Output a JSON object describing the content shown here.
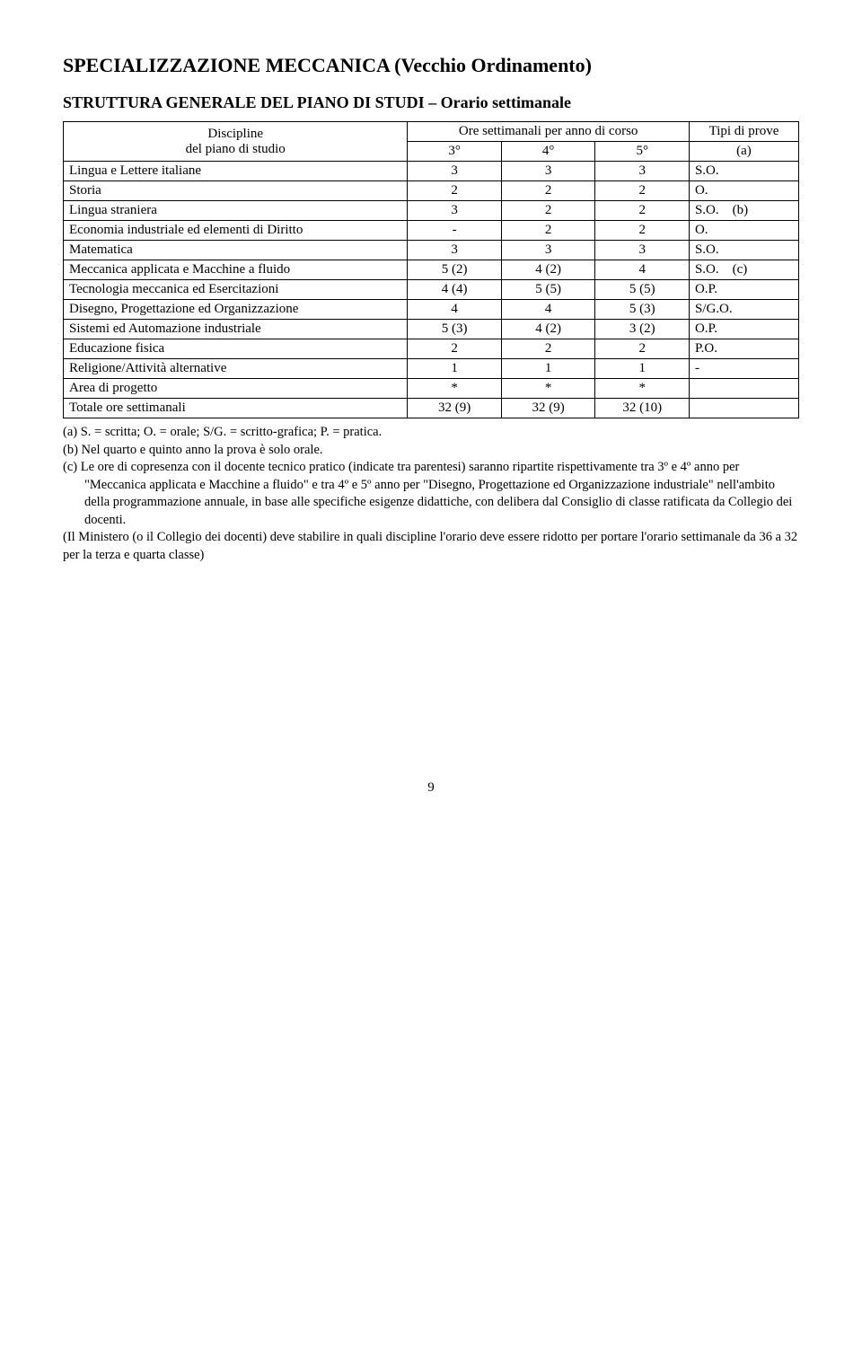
{
  "title": "SPECIALIZZAZIONE MECCANICA (Vecchio Ordinamento)",
  "subtitle": "STRUTTURA GENERALE DEL PIANO DI STUDI – Orario settimanale",
  "header": {
    "discipline": "Discipline",
    "piano": "del piano di studio",
    "ore": "Ore settimanali per anno di corso",
    "c3": "3°",
    "c4": "4°",
    "c5": "5°",
    "tipi": "Tipi di prove",
    "a": "(a)"
  },
  "rows": [
    {
      "label": "Lingua e Lettere italiane",
      "v3": "3",
      "v4": "3",
      "v5": "3",
      "t": "S.O."
    },
    {
      "label": "Storia",
      "v3": "2",
      "v4": "2",
      "v5": "2",
      "t": "O."
    },
    {
      "label": "Lingua straniera",
      "v3": "3",
      "v4": "2",
      "v5": "2",
      "t": "S.O.    (b)"
    },
    {
      "label": "Economia industriale ed elementi di Diritto",
      "v3": "-",
      "v4": "2",
      "v5": "2",
      "t": "O."
    },
    {
      "label": "Matematica",
      "v3": "3",
      "v4": "3",
      "v5": "3",
      "t": "S.O."
    },
    {
      "label": "Meccanica applicata e Macchine a fluido",
      "v3": "5 (2)",
      "v4": "4 (2)",
      "v5": "4",
      "t": "S.O.    (c)"
    },
    {
      "label": "Tecnologia meccanica  ed Esercitazioni",
      "v3": "4 (4)",
      "v4": "5 (5)",
      "v5": "5 (5)",
      "t": "O.P."
    },
    {
      "label": "Disegno, Progettazione ed Organizzazione",
      "v3": "4",
      "v4": "4",
      "v5": "5 (3)",
      "t": "S/G.O."
    },
    {
      "label": "Sistemi ed Automazione industriale",
      "v3": "5 (3)",
      "v4": "4 (2)",
      "v5": "3 (2)",
      "t": "O.P."
    },
    {
      "label": "Educazione fisica",
      "v3": "2",
      "v4": "2",
      "v5": "2",
      "t": "P.O."
    },
    {
      "label": "Religione/Attività alternative",
      "v3": "1",
      "v4": "1",
      "v5": "1",
      "t": "-"
    },
    {
      "label": "Area di progetto",
      "v3": "*",
      "v4": "*",
      "v5": "*",
      "t": ""
    },
    {
      "label": "Totale ore settimanali",
      "v3": "32 (9)",
      "v4": "32 (9)",
      "v5": "32 (10)",
      "t": ""
    }
  ],
  "notes": {
    "a": "(a) S. = scritta; O. = orale; S/G. = scritto-grafica; P. = pratica.",
    "b": "(b) Nel quarto e quinto anno la prova è solo orale.",
    "c": "(c) Le ore di copresenza con il docente tecnico pratico (indicate tra parentesi) saranno ripartite rispettivamente tra 3º e 4º anno per \"Meccanica applicata e Macchine a fluido\" e tra 4º e 5º anno per \"Disegno, Progettazione ed Organizzazione industriale\" nell'ambito della programmazione annuale, in base alle specifiche esigenze didattiche, con delibera dal Consiglio di classe ratificata da Collegio dei docenti.",
    "last": "(Il Ministero (o il Collegio dei docenti) deve stabilire in quali discipline l'orario deve essere ridotto per portare l'orario settimanale da 36 a 32 per la terza e quarta classe)"
  },
  "pageNumber": "9"
}
